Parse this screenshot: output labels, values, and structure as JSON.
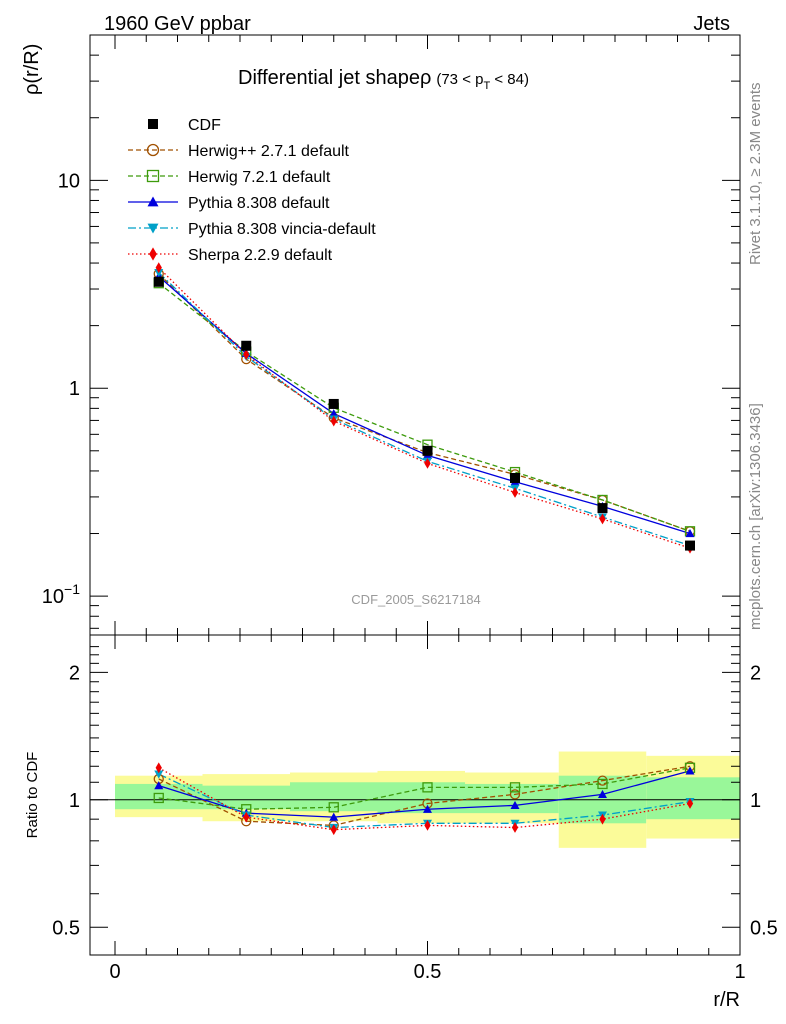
{
  "header": {
    "left": "1960 GeV ppbar",
    "right": "Jets"
  },
  "side_labels": {
    "rivet": "Rivet 3.1.10, ≥ 2.3M events",
    "mcplots": "mcplots.cern.ch [arXiv:1306.3436]"
  },
  "colors": {
    "band_inner": "#99f799",
    "band_outer": "#fbfb99"
  },
  "chart_data": [
    {
      "type": "line",
      "panel": "main",
      "title_main": "Differential jet shapeρ",
      "title_range": "(73 < p_T < 84)",
      "title_pre": "(73 < p",
      "title_sub": "T",
      "title_post": " < 84)",
      "ylabel": "ρ(r/R)",
      "yscale": "log",
      "ylim": [
        0.065,
        50
      ],
      "xlim": [
        -0.04,
        1.0
      ],
      "y_tick_labels": [
        {
          "value": 0.1,
          "base": "10",
          "exp": "−1"
        },
        {
          "value": 1,
          "base": "1",
          "exp": ""
        },
        {
          "value": 10,
          "base": "10",
          "exp": ""
        }
      ],
      "watermark": "CDF_2005_S6217184",
      "x": [
        0.07,
        0.21,
        0.35,
        0.5,
        0.64,
        0.78,
        0.92
      ],
      "series": [
        {
          "name": "CDF",
          "color": "#000000",
          "marker": "square-filled",
          "dash": "",
          "values": [
            3.25,
            1.6,
            0.84,
            0.5,
            0.37,
            0.265,
            0.175
          ]
        },
        {
          "name": "Herwig++ 2.7.1 default",
          "color": "#a05000",
          "marker": "circle-open",
          "dash": "5,3",
          "values": [
            3.55,
            1.38,
            0.72,
            0.49,
            0.385,
            0.29,
            0.205
          ]
        },
        {
          "name": "Herwig 7.2.1 default",
          "color": "#3d9b0c",
          "marker": "square-open",
          "dash": "5,3",
          "values": [
            3.2,
            1.5,
            0.805,
            0.535,
            0.395,
            0.29,
            0.205
          ]
        },
        {
          "name": "Pythia 8.308 default",
          "color": "#0000dd",
          "marker": "triangle-up",
          "dash": "",
          "values": [
            3.45,
            1.47,
            0.755,
            0.475,
            0.355,
            0.27,
            0.2
          ]
        },
        {
          "name": "Pythia 8.308 vincia-default",
          "color": "#00a0c8",
          "marker": "triangle-down",
          "dash": "8,3,2,3",
          "values": [
            3.6,
            1.42,
            0.71,
            0.445,
            0.33,
            0.24,
            0.175
          ]
        },
        {
          "name": "Sherpa 2.2.9 default",
          "color": "#ee0000",
          "marker": "diamond",
          "dash": "1.5,2.5",
          "values": [
            3.8,
            1.45,
            0.695,
            0.435,
            0.315,
            0.235,
            0.17
          ]
        }
      ]
    },
    {
      "type": "line",
      "panel": "ratio",
      "ylabel": "Ratio to CDF",
      "xlabel": "r/R",
      "yscale": "log",
      "ylim": [
        0.43,
        2.45
      ],
      "xlim": [
        -0.04,
        1.0
      ],
      "y_tick_labels": [
        {
          "value": 0.5,
          "label": "0.5"
        },
        {
          "value": 1,
          "label": "1"
        },
        {
          "value": 2,
          "label": "2"
        }
      ],
      "x_tick_labels": [
        {
          "value": 0,
          "label": "0"
        },
        {
          "value": 0.5,
          "label": "0.5"
        },
        {
          "value": 1,
          "label": "1"
        }
      ],
      "band_edges": [
        0.0,
        0.14,
        0.28,
        0.42,
        0.56,
        0.71,
        0.85,
        1.0
      ],
      "band_inner": [
        [
          0.95,
          1.09
        ],
        [
          0.95,
          1.08
        ],
        [
          0.94,
          1.1
        ],
        [
          0.93,
          1.1
        ],
        [
          0.93,
          1.09
        ],
        [
          0.88,
          1.14
        ],
        [
          0.9,
          1.13
        ]
      ],
      "band_outer": [
        [
          0.91,
          1.14
        ],
        [
          0.89,
          1.15
        ],
        [
          0.89,
          1.16
        ],
        [
          0.88,
          1.17
        ],
        [
          0.88,
          1.16
        ],
        [
          0.77,
          1.3
        ],
        [
          0.81,
          1.27
        ]
      ],
      "x": [
        0.07,
        0.21,
        0.35,
        0.5,
        0.64,
        0.78,
        0.92
      ],
      "series": [
        {
          "name": "Herwig++ 2.7.1 default",
          "values": [
            1.12,
            0.89,
            0.87,
            0.98,
            1.03,
            1.11,
            1.2
          ]
        },
        {
          "name": "Herwig 7.2.1 default",
          "values": [
            1.01,
            0.95,
            0.96,
            1.07,
            1.07,
            1.09,
            1.19
          ]
        },
        {
          "name": "Pythia 8.308 default",
          "values": [
            1.08,
            0.93,
            0.91,
            0.95,
            0.97,
            1.03,
            1.17
          ]
        },
        {
          "name": "Pythia 8.308 vincia-default",
          "values": [
            1.15,
            0.92,
            0.86,
            0.88,
            0.88,
            0.92,
            0.99
          ]
        },
        {
          "name": "Sherpa 2.2.9 default",
          "values": [
            1.19,
            0.91,
            0.85,
            0.87,
            0.86,
            0.9,
            0.98
          ]
        }
      ]
    }
  ]
}
